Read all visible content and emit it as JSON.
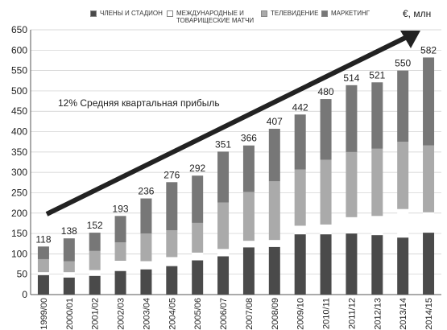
{
  "chart_data": {
    "type": "stacked-bar",
    "unit_label": "€, млн",
    "annotation": "12% Средняя квартальная прибыль",
    "categories": [
      "1999/00",
      "2000/01",
      "2001/02",
      "2002/03",
      "2003/04",
      "2004/05",
      "2005/06",
      "2006/07",
      "2007/08",
      "2008/09",
      "2009/10",
      "2010/11",
      "2011/12",
      "2012/13",
      "2013/14",
      "2014/15"
    ],
    "series": [
      {
        "name": "ЧЛЕНЫ И СТАДИОН",
        "color": "#4a4a4a",
        "values": [
          48,
          42,
          46,
          58,
          62,
          70,
          84,
          94,
          116,
          117,
          148,
          148,
          150,
          146,
          140,
          152
        ]
      },
      {
        "name": "МЕЖДУНАРОДНЫЕ И ТОВАРИЩЕСКИЕ МАТЧИ",
        "color": "#ffffff",
        "values": [
          7,
          13,
          14,
          25,
          20,
          22,
          19,
          18,
          16,
          17,
          21,
          24,
          40,
          47,
          70,
          50
        ]
      },
      {
        "name": "ТЕЛЕВИДЕНИЕ",
        "color": "#aaaaaa",
        "values": [
          32,
          27,
          47,
          45,
          68,
          66,
          73,
          114,
          120,
          144,
          138,
          159,
          160,
          165,
          165,
          164
        ]
      },
      {
        "name": "МАРКЕТИНГ",
        "color": "#777777",
        "values": [
          31,
          56,
          45,
          65,
          86,
          118,
          116,
          125,
          114,
          129,
          135,
          149,
          164,
          163,
          175,
          216
        ]
      }
    ],
    "totals": [
      118,
      138,
      152,
      193,
      236,
      276,
      292,
      351,
      366,
      407,
      442,
      480,
      514,
      521,
      550,
      582
    ],
    "ylim": [
      0,
      650
    ],
    "yticks": [
      0,
      50,
      100,
      150,
      200,
      250,
      300,
      350,
      400,
      450,
      500,
      550,
      600,
      650
    ],
    "grid": true
  }
}
